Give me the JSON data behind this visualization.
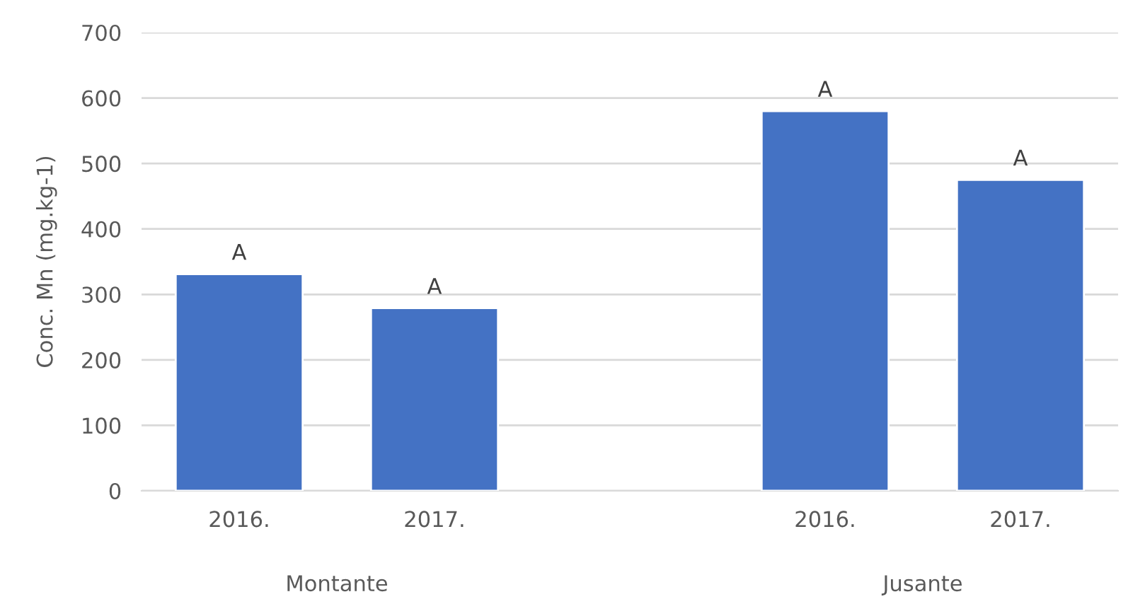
{
  "chart_data": {
    "type": "bar",
    "ylabel": "Conc. Mn (mg.kg-1)",
    "categories": [
      "2016.",
      "2017.",
      null,
      "2016.",
      "2017."
    ],
    "values": [
      331,
      279,
      null,
      580,
      475
    ],
    "value_labels": [
      "A",
      "A",
      null,
      "A",
      "A"
    ],
    "color": "#4472c4",
    "ylim": [
      0,
      700
    ],
    "yticks": [
      0,
      100,
      200,
      300,
      400,
      500,
      600,
      700
    ],
    "grid": "y",
    "annotations": [
      "Montante",
      "Jusante"
    ]
  }
}
